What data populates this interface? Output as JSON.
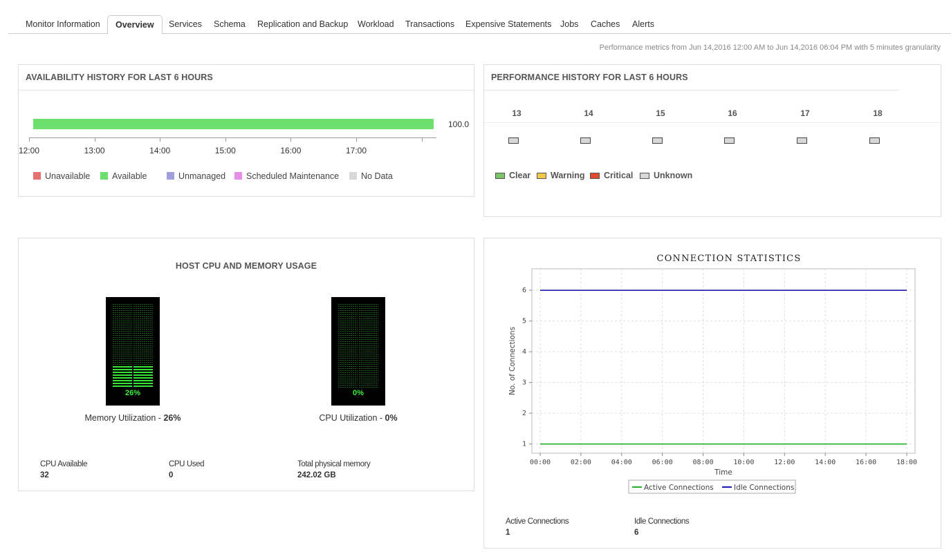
{
  "tabs": [
    {
      "label": "Monitor Information",
      "active": false
    },
    {
      "label": "Overview",
      "active": true
    },
    {
      "label": "Services",
      "active": false
    },
    {
      "label": "Schema",
      "active": false
    },
    {
      "label": "Replication and Backup",
      "active": false
    },
    {
      "label": "Workload",
      "active": false
    },
    {
      "label": "Transactions",
      "active": false
    },
    {
      "label": "Expensive Statements",
      "active": false
    },
    {
      "label": "Jobs",
      "active": false
    },
    {
      "label": "Caches",
      "active": false
    },
    {
      "label": "Alerts",
      "active": false
    }
  ],
  "perf_note": "Performance metrics from Jun 14,2016 12:00 AM to Jun 14,2016 06:04 PM with 5 minutes granularity",
  "availability": {
    "title": "AVAILABILITY HISTORY FOR LAST 6 HOURS",
    "value_label": "100.0",
    "available_fraction": 1.0,
    "ticks": [
      "12:00",
      "13:00",
      "14:00",
      "15:00",
      "16:00",
      "17:00"
    ],
    "legend": [
      {
        "label": "Unavailable",
        "color": "#e86f6f"
      },
      {
        "label": "Available",
        "color": "#6ddf6d"
      },
      {
        "label": "Unmanaged",
        "color": "#9f9fe0"
      },
      {
        "label": "Scheduled Maintenance",
        "color": "#e68ee6"
      },
      {
        "label": "No Data",
        "color": "#d8d8d8"
      }
    ]
  },
  "performance": {
    "title": "PERFORMANCE HISTORY FOR LAST 6 HOURS",
    "hours": [
      "13",
      "14",
      "15",
      "16",
      "17",
      "18"
    ],
    "status": [
      "Unknown",
      "Unknown",
      "Unknown",
      "Unknown",
      "Unknown",
      "Unknown"
    ],
    "legend": [
      {
        "label": "Clear",
        "color": "#7cc46a"
      },
      {
        "label": "Warning",
        "color": "#f2c84b"
      },
      {
        "label": "Critical",
        "color": "#e04a2f"
      },
      {
        "label": "Unknown",
        "color": "#d8d8d8"
      }
    ]
  },
  "host": {
    "title": "HOST CPU AND MEMORY USAGE",
    "memory": {
      "percent": 26,
      "percent_label": "26%",
      "caption": "Memory Utilization - ",
      "caption_value": "26%"
    },
    "cpu": {
      "percent": 0,
      "percent_label": "0%",
      "caption": "CPU Utilization - ",
      "caption_value": "0%"
    },
    "stats": [
      {
        "label": "CPU Available",
        "value": "32"
      },
      {
        "label": "CPU Used",
        "value": "0"
      },
      {
        "label": "Total physical memory",
        "value": "242.02 GB"
      }
    ]
  },
  "connections": {
    "stats": [
      {
        "label": "Active Connections",
        "value": "1"
      },
      {
        "label": "Idle Connections",
        "value": "6"
      }
    ]
  },
  "chart_data": {
    "type": "line",
    "title": "CONNECTION STATISTICS",
    "xlabel": "Time",
    "ylabel": "No. of Connections",
    "x": [
      "00:00",
      "02:00",
      "04:00",
      "06:00",
      "08:00",
      "10:00",
      "12:00",
      "14:00",
      "16:00",
      "18:00"
    ],
    "ylim": [
      0.7,
      6.7
    ],
    "yticks": [
      1,
      2,
      3,
      4,
      5,
      6
    ],
    "grid": true,
    "legend_position": "bottom",
    "series": [
      {
        "name": "Active Connections",
        "color": "#22b022",
        "values": [
          1,
          1,
          1,
          1,
          1,
          1,
          1,
          1,
          1,
          1
        ]
      },
      {
        "name": "Idle Connections",
        "color": "#1b1bb0",
        "values": [
          6,
          6,
          6,
          6,
          6,
          6,
          6,
          6,
          6,
          6
        ]
      }
    ]
  }
}
